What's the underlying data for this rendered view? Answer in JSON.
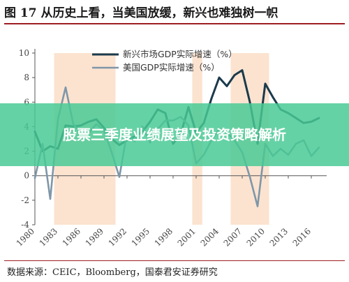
{
  "header": {
    "title": "图 17  从历史上看，当美国放缓，新兴也难独树一帜"
  },
  "footer": {
    "source": "数据来源：CEIC，Bloomberg，国泰君安证券研究"
  },
  "overlay": {
    "text": "股票三季度业绩展望及投资策略解析"
  },
  "colors": {
    "emerging": "#1b3a4b",
    "us": "#7f96a8",
    "shade": "#fbe3d0",
    "axis": "#555555",
    "accent_rule": "#9e1d22",
    "overlay": "#48c994"
  },
  "chart_data": {
    "type": "line",
    "title": "",
    "xlabel": "",
    "ylabel": "",
    "xlim": [
      1980,
      2018
    ],
    "ylim": [
      -4,
      10
    ],
    "x_ticks": [
      1980,
      1983,
      1986,
      1989,
      1992,
      1995,
      1998,
      2001,
      2004,
      2007,
      2010,
      2013,
      2016
    ],
    "y_ticks": [
      -4,
      -2,
      0,
      2,
      4,
      6,
      8,
      10
    ],
    "grid": false,
    "legend_position": "top-center",
    "shaded_periods": [
      [
        1982.5,
        1990.5
      ],
      [
        2000.5,
        2001.8
      ],
      [
        2005.5,
        2010.5
      ]
    ],
    "series": [
      {
        "name": "新兴市场GDP实际增速（%）",
        "color": "#1b3a4b",
        "x": [
          1980,
          1981,
          1982,
          1983,
          1984,
          1985,
          1986,
          1987,
          1988,
          1989,
          1990,
          1991,
          1992,
          1993,
          1994,
          1995,
          1996,
          1997,
          1998,
          1999,
          2000,
          2001,
          2002,
          2003,
          2004,
          2005,
          2006,
          2007,
          2008,
          2009,
          2010,
          2011,
          2012,
          2013,
          2014,
          2015,
          2016,
          2017
        ],
        "values": [
          3.6,
          2.0,
          2.4,
          2.2,
          4.1,
          4.0,
          4.1,
          4.4,
          4.6,
          3.9,
          3.0,
          2.5,
          2.9,
          3.2,
          3.6,
          4.4,
          5.4,
          5.1,
          2.6,
          3.4,
          5.6,
          3.5,
          4.3,
          6.3,
          8.0,
          7.3,
          8.2,
          8.6,
          6.0,
          2.6,
          7.5,
          6.4,
          5.4,
          5.1,
          4.7,
          4.3,
          4.4,
          4.7
        ]
      },
      {
        "name": "美国GDP实际增速（%）",
        "color": "#7f96a8",
        "x": [
          1980,
          1981,
          1982,
          1983,
          1984,
          1985,
          1986,
          1987,
          1988,
          1989,
          1990,
          1991,
          1992,
          1993,
          1994,
          1995,
          1996,
          1997,
          1998,
          1999,
          2000,
          2001,
          2002,
          2003,
          2004,
          2005,
          2006,
          2007,
          2008,
          2009,
          2010,
          2011,
          2012,
          2013,
          2014,
          2015,
          2016,
          2017
        ],
        "values": [
          -0.2,
          2.6,
          -1.9,
          4.6,
          7.2,
          4.2,
          3.5,
          3.5,
          4.2,
          3.7,
          1.9,
          -0.1,
          3.5,
          2.8,
          4.0,
          2.7,
          3.8,
          4.5,
          4.5,
          4.8,
          4.1,
          1.0,
          1.7,
          2.9,
          3.8,
          3.5,
          2.9,
          1.9,
          -0.1,
          -2.5,
          2.6,
          1.6,
          2.2,
          1.7,
          2.6,
          2.9,
          1.6,
          2.3
        ]
      }
    ]
  }
}
